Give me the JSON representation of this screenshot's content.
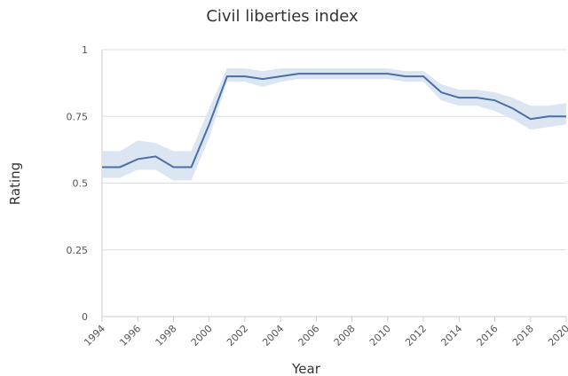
{
  "chart_data": {
    "type": "line",
    "title": "Civil liberties index",
    "x_label": "Year",
    "y_label": "Rating",
    "x": [
      1994,
      1995,
      1996,
      1997,
      1998,
      1999,
      2000,
      2001,
      2002,
      2003,
      2004,
      2005,
      2006,
      2007,
      2008,
      2009,
      2010,
      2011,
      2012,
      2013,
      2014,
      2015,
      2016,
      2017,
      2018,
      2019,
      2020
    ],
    "series": [
      {
        "color": "#4a6fa5",
        "values": [
          0.56,
          0.56,
          0.59,
          0.6,
          0.56,
          0.56,
          0.72,
          0.9,
          0.9,
          0.89,
          0.9,
          0.91,
          0.91,
          0.91,
          0.91,
          0.91,
          0.91,
          0.9,
          0.9,
          0.84,
          0.82,
          0.82,
          0.81,
          0.78,
          0.74,
          0.75,
          0.75
        ]
      }
    ],
    "upper": [
      0.62,
      0.62,
      0.66,
      0.65,
      0.62,
      0.62,
      0.78,
      0.93,
      0.93,
      0.92,
      0.93,
      0.93,
      0.93,
      0.93,
      0.93,
      0.93,
      0.93,
      0.92,
      0.92,
      0.87,
      0.85,
      0.85,
      0.84,
      0.82,
      0.79,
      0.79,
      0.8
    ],
    "lower": [
      0.52,
      0.52,
      0.55,
      0.55,
      0.51,
      0.51,
      0.67,
      0.88,
      0.88,
      0.86,
      0.88,
      0.89,
      0.89,
      0.89,
      0.89,
      0.89,
      0.89,
      0.88,
      0.88,
      0.81,
      0.79,
      0.79,
      0.77,
      0.74,
      0.7,
      0.71,
      0.72
    ],
    "band_color": "#dce5f2",
    "xlim": [
      1994,
      2020
    ],
    "xticks": [
      1994,
      1996,
      1998,
      2000,
      2002,
      2004,
      2006,
      2008,
      2010,
      2012,
      2014,
      2016,
      2018,
      2020
    ],
    "ylim": [
      0,
      1
    ],
    "yticks": [
      0,
      0.25,
      0.5,
      0.75,
      1
    ],
    "grid": true
  }
}
